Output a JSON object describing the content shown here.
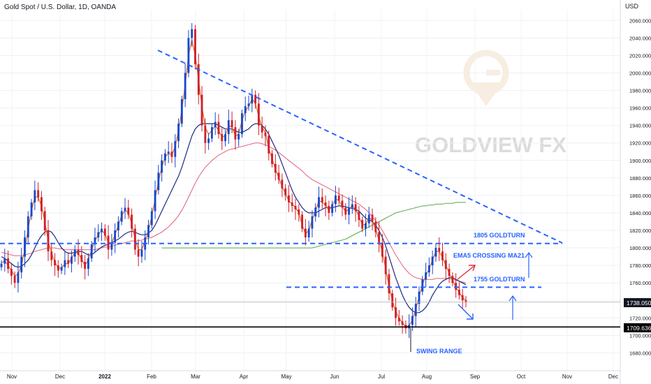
{
  "header": {
    "symbol_title": "Gold Spot / U.S. Dollar, 1D, OANDA",
    "currency": "USD"
  },
  "watermark": {
    "brand": "GOLDVIEW FX"
  },
  "chart_data": {
    "type": "candlestick",
    "title": "Gold Spot / U.S. Dollar, 1D, OANDA",
    "y_unit": "USD",
    "ylim": [
      1670,
      2090
    ],
    "y_ticks": [
      "2060.000",
      "2040.000",
      "2020.000",
      "2000.000",
      "1980.000",
      "1960.000",
      "1940.000",
      "1920.000",
      "1900.000",
      "1880.000",
      "1860.000",
      "1840.000",
      "1820.000",
      "1800.000",
      "1780.000",
      "1760.000",
      "1740.000",
      "1720.000",
      "1700.000",
      "1680.000"
    ],
    "x_ticks": [
      "Nov",
      "Dec",
      "2022",
      "Feb",
      "Mar",
      "Apr",
      "May",
      "Jun",
      "Jul",
      "Aug",
      "Sep",
      "Oct",
      "Nov",
      "Dec"
    ],
    "grid": true,
    "price_close": [
      1782,
      1788,
      1776,
      1768,
      1760,
      1772,
      1790,
      1812,
      1836,
      1852,
      1866,
      1858,
      1842,
      1820,
      1796,
      1786,
      1780,
      1774,
      1778,
      1786,
      1782,
      1790,
      1798,
      1792,
      1784,
      1776,
      1788,
      1804,
      1812,
      1818,
      1822,
      1814,
      1798,
      1806,
      1820,
      1830,
      1842,
      1846,
      1838,
      1822,
      1798,
      1790,
      1798,
      1812,
      1826,
      1842,
      1866,
      1886,
      1900,
      1908,
      1910,
      1904,
      1922,
      1942,
      1970,
      2000,
      2040,
      2050,
      2010,
      1975,
      1940,
      1920,
      1925,
      1938,
      1944,
      1930,
      1922,
      1930,
      1946,
      1938,
      1924,
      1930,
      1954,
      1962,
      1965,
      1975,
      1965,
      1940,
      1932,
      1928,
      1908,
      1896,
      1886,
      1878,
      1868,
      1860,
      1852,
      1848,
      1844,
      1838,
      1822,
      1812,
      1822,
      1836,
      1846,
      1858,
      1852,
      1848,
      1840,
      1850,
      1860,
      1854,
      1846,
      1838,
      1846,
      1850,
      1842,
      1832,
      1822,
      1828,
      1838,
      1830,
      1818,
      1806,
      1790,
      1770,
      1748,
      1732,
      1720,
      1716,
      1712,
      1708,
      1712,
      1722,
      1736,
      1750,
      1764,
      1772,
      1780,
      1790,
      1800,
      1796,
      1786,
      1776,
      1768,
      1760,
      1752,
      1746,
      1740,
      1738
    ],
    "ema5": [
      1783,
      1785,
      1780,
      1774,
      1768,
      1770,
      1780,
      1798,
      1822,
      1842,
      1858,
      1858,
      1848,
      1830,
      1808,
      1794,
      1784,
      1777,
      1777,
      1782,
      1782,
      1788,
      1795,
      1794,
      1787,
      1780,
      1786,
      1798,
      1808,
      1815,
      1820,
      1816,
      1806,
      1806,
      1815,
      1826,
      1837,
      1843,
      1840,
      1828,
      1810,
      1798,
      1798,
      1808,
      1820,
      1836,
      1856,
      1876,
      1892,
      1904,
      1908,
      1906,
      1916,
      1934,
      1958,
      1986,
      2020,
      2038,
      2020,
      1992,
      1962,
      1938,
      1930,
      1934,
      1940,
      1934,
      1927,
      1928,
      1940,
      1938,
      1928,
      1930,
      1946,
      1956,
      1962,
      1970,
      1966,
      1950,
      1938,
      1932,
      1914,
      1902,
      1890,
      1880,
      1870,
      1862,
      1854,
      1850,
      1846,
      1840,
      1826,
      1816,
      1820,
      1832,
      1842,
      1854,
      1852,
      1849,
      1843,
      1848,
      1856,
      1854,
      1848,
      1841,
      1845,
      1848,
      1844,
      1836,
      1826,
      1827,
      1835,
      1831,
      1821,
      1809,
      1795,
      1776,
      1756,
      1740,
      1727,
      1720,
      1714,
      1710,
      1711,
      1718,
      1730,
      1744,
      1758,
      1768,
      1776,
      1786,
      1796,
      1796,
      1789,
      1780,
      1771,
      1763,
      1755,
      1749,
      1743,
      1740
    ],
    "ma21": [
      1790,
      1788,
      1785,
      1782,
      1779,
      1778,
      1779,
      1782,
      1786,
      1792,
      1800,
      1808,
      1814,
      1818,
      1820,
      1818,
      1813,
      1806,
      1800,
      1796,
      1794,
      1794,
      1795,
      1796,
      1796,
      1794,
      1792,
      1792,
      1795,
      1798,
      1801,
      1803,
      1804,
      1806,
      1808,
      1810,
      1813,
      1816,
      1818,
      1819,
      1818,
      1816,
      1815,
      1815,
      1817,
      1820,
      1826,
      1834,
      1842,
      1850,
      1858,
      1866,
      1874,
      1882,
      1892,
      1904,
      1916,
      1928,
      1936,
      1940,
      1942,
      1942,
      1942,
      1942,
      1942,
      1940,
      1938,
      1936,
      1936,
      1936,
      1934,
      1932,
      1932,
      1934,
      1936,
      1940,
      1942,
      1942,
      1940,
      1936,
      1930,
      1922,
      1914,
      1906,
      1896,
      1886,
      1876,
      1866,
      1858,
      1852,
      1846,
      1842,
      1840,
      1840,
      1840,
      1842,
      1844,
      1846,
      1846,
      1846,
      1847,
      1848,
      1848,
      1847,
      1846,
      1845,
      1844,
      1842,
      1838,
      1834,
      1832,
      1830,
      1826,
      1820,
      1812,
      1802,
      1790,
      1778,
      1766,
      1756,
      1746,
      1738,
      1732,
      1728,
      1726,
      1726,
      1728,
      1732,
      1738,
      1746,
      1752,
      1758,
      1762,
      1764,
      1766,
      1766,
      1764,
      1762,
      1760,
      1758
    ],
    "ma50": [
      1795,
      1794,
      1793,
      1792,
      1791,
      1791,
      1791,
      1792,
      1793,
      1794,
      1796,
      1797,
      1798,
      1799,
      1800,
      1800,
      1800,
      1799,
      1799,
      1798,
      1798,
      1798,
      1798,
      1798,
      1798,
      1798,
      1798,
      1798,
      1798,
      1799,
      1800,
      1801,
      1801,
      1802,
      1803,
      1804,
      1805,
      1806,
      1807,
      1808,
      1808,
      1808,
      1809,
      1810,
      1811,
      1812,
      1814,
      1816,
      1818,
      1821,
      1824,
      1828,
      1832,
      1837,
      1843,
      1850,
      1858,
      1866,
      1874,
      1881,
      1887,
      1892,
      1896,
      1900,
      1903,
      1906,
      1908,
      1910,
      1912,
      1913,
      1914,
      1915,
      1916,
      1917,
      1918,
      1919,
      1920,
      1920,
      1919,
      1918,
      1916,
      1914,
      1912,
      1909,
      1906,
      1903,
      1900,
      1897,
      1894,
      1891,
      1888,
      1884,
      1881,
      1878,
      1876,
      1874,
      1872,
      1870,
      1868,
      1866,
      1864,
      1862,
      1860,
      1858,
      1856,
      1854,
      1852,
      1850,
      1847,
      1844,
      1840,
      1836,
      1831,
      1826,
      1820,
      1813,
      1806,
      1799,
      1792,
      1786,
      1780,
      1775,
      1771,
      1768,
      1766,
      1765,
      1764,
      1764,
      1764,
      1764,
      1765,
      1765,
      1765,
      1765,
      1765,
      1764,
      1763,
      1762,
      1761,
      1760
    ],
    "ma200": [
      1800,
      1800,
      1800,
      1800,
      1800,
      1800,
      1800,
      1800,
      1800,
      1800,
      1800,
      1800,
      1800,
      1800,
      1800,
      1800,
      1800,
      1800,
      1800,
      1800,
      1800,
      1800,
      1800,
      1800,
      1800,
      1800,
      1800,
      1800,
      1800,
      1800,
      1800,
      1800,
      1800,
      1800,
      1800,
      1800,
      1800,
      1800,
      1800,
      1800,
      1800,
      1800,
      1800,
      1800,
      1800,
      1800,
      1801,
      1802,
      1803,
      1804,
      1805,
      1806,
      1807,
      1808,
      1809,
      1810,
      1812,
      1814,
      1816,
      1818,
      1820,
      1822,
      1824,
      1826,
      1828,
      1830,
      1832,
      1834,
      1836,
      1838,
      1840,
      1841,
      1842,
      1843,
      1844,
      1845,
      1846,
      1847,
      1848,
      1848,
      1849,
      1849,
      1850,
      1850,
      1850,
      1851,
      1851,
      1851,
      1852,
      1852,
      1852,
      1852,
      1852,
      1852,
      1852,
      1852,
      1852,
      1851,
      1851,
      1850,
      1849,
      1848,
      1847,
      1846,
      1845,
      1844,
      1843,
      1842,
      1841,
      1840
    ],
    "levels": [
      {
        "label": "1805 GOLDTURN",
        "value": 1805
      },
      {
        "label": "1755 GOLDTURN",
        "value": 1755
      },
      {
        "label": "EMA5 CROSSING MA21",
        "value": 1790
      }
    ],
    "annotation_swing": "SWING RANGE",
    "last_price_label": "1738.050",
    "last_price": 1738.05,
    "support_label": "1709.636",
    "support_price": 1709.636,
    "colors": {
      "up": "#1848cc",
      "down": "#d0202a",
      "ema5": "#e07020",
      "ma21": "#1a2a80",
      "ma50": "#e0607a",
      "ma200": "#5aa84a",
      "dashed": "#2962ff",
      "label": "#2962ff",
      "support": "#000000"
    }
  }
}
